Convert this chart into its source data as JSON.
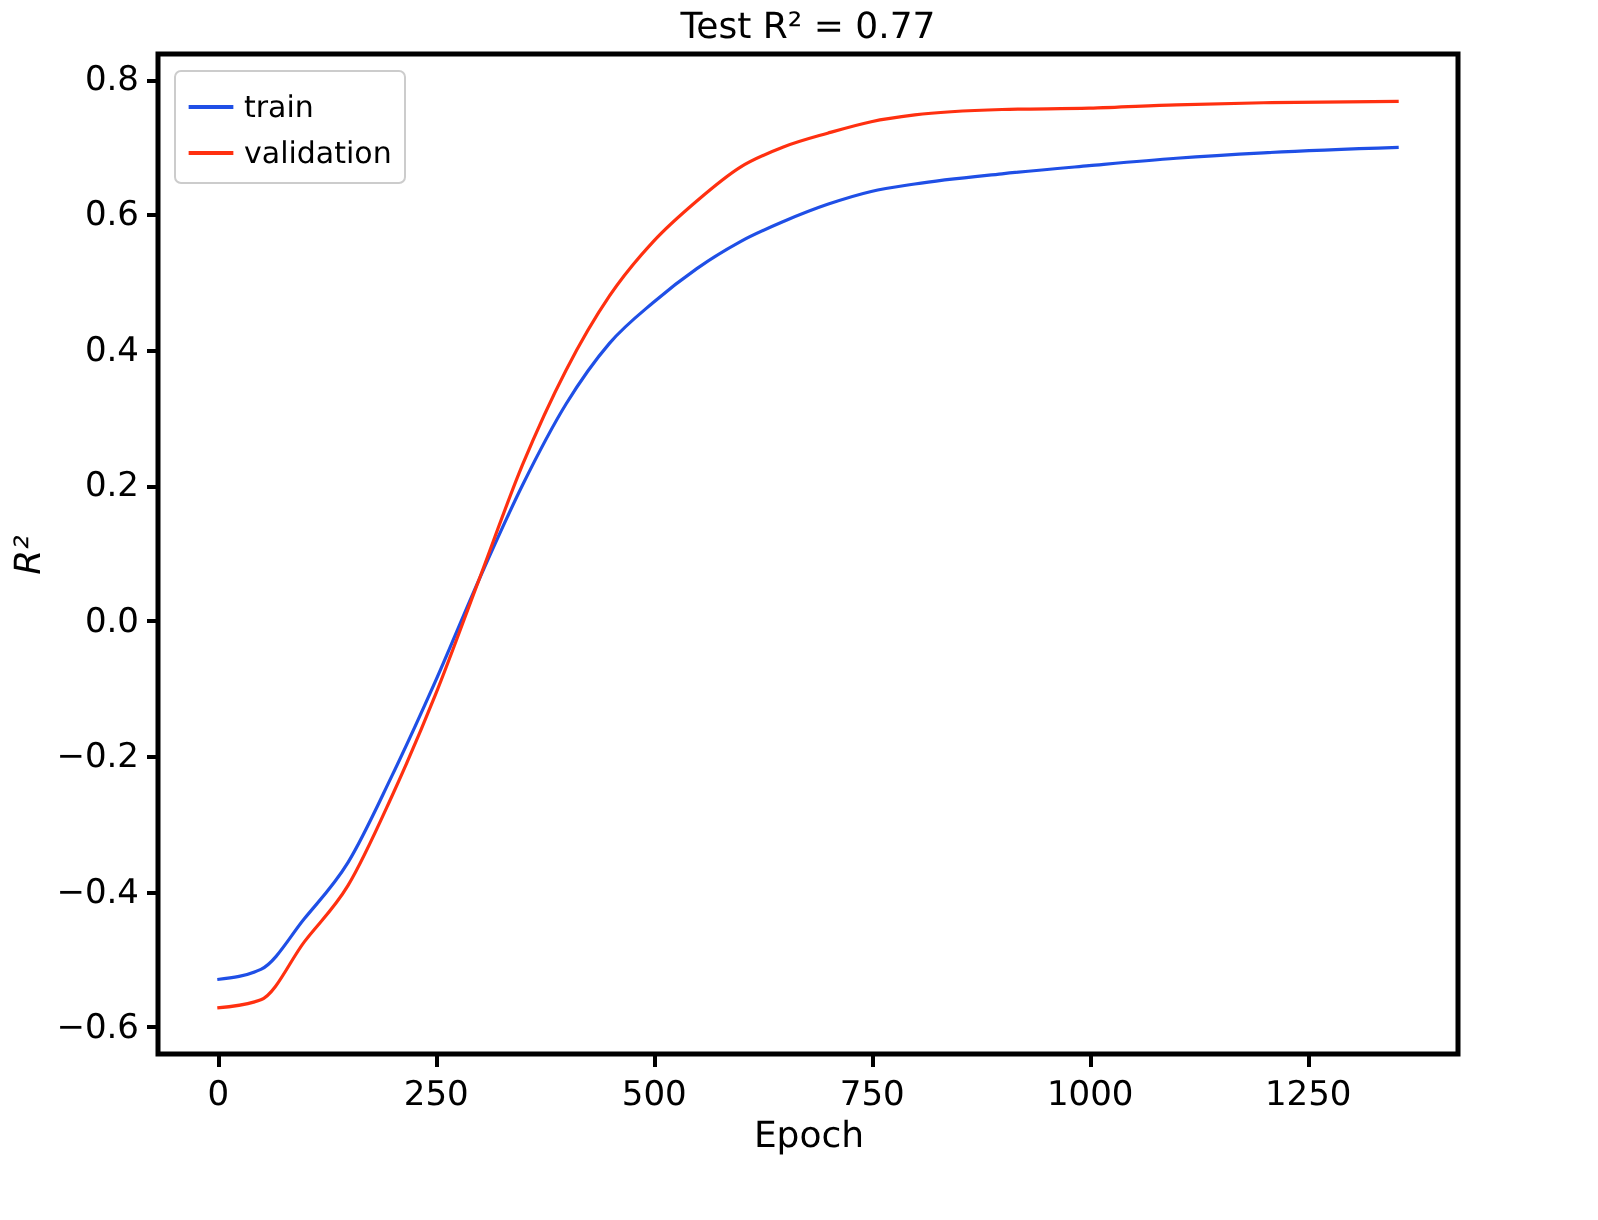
{
  "chart_data": {
    "type": "line",
    "title": "Test R² = 0.77",
    "xlabel": "Epoch",
    "ylabel": "R²",
    "x": [
      0,
      50,
      100,
      150,
      200,
      250,
      300,
      350,
      400,
      450,
      500,
      550,
      600,
      650,
      700,
      750,
      800,
      900,
      1000,
      1100,
      1200,
      1355
    ],
    "series": [
      {
        "name": "train",
        "color": "#1f4fe6",
        "values": [
          -0.53,
          -0.515,
          -0.44,
          -0.357,
          -0.23,
          -0.09,
          0.06,
          0.2,
          0.32,
          0.41,
          0.47,
          0.52,
          0.56,
          0.59,
          0.615,
          0.634,
          0.645,
          0.66,
          0.672,
          0.683,
          0.691,
          0.699
        ]
      },
      {
        "name": "validation",
        "color": "#ff3010",
        "values": [
          -0.572,
          -0.56,
          -0.474,
          -0.391,
          -0.26,
          -0.11,
          0.06,
          0.23,
          0.37,
          0.48,
          0.56,
          0.62,
          0.67,
          0.7,
          0.72,
          0.737,
          0.747,
          0.755,
          0.757,
          0.762,
          0.765,
          0.767
        ]
      }
    ],
    "xlim": [
      -68,
      1423
    ],
    "xticks": [
      0,
      250,
      500,
      750,
      1000,
      1250
    ],
    "ylim": [
      -0.64,
      0.837
    ],
    "yticks": [
      -0.6,
      -0.4,
      -0.2,
      {
        "value": 0,
        "label": "0.0"
      },
      0.2,
      0.4,
      0.6,
      0.8
    ],
    "grid": false,
    "legend": "top left",
    "line_style": "solid",
    "marker": "none"
  }
}
